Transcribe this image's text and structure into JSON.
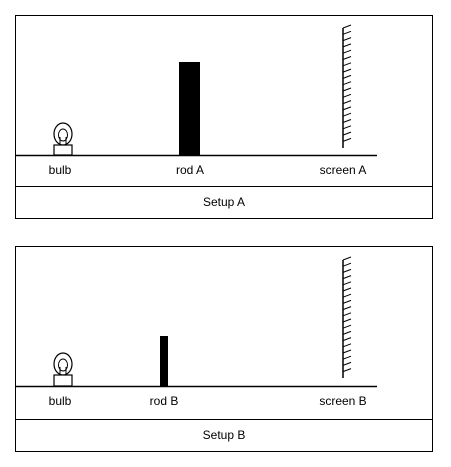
{
  "setups": [
    {
      "caption": "Setup A",
      "labels": {
        "bulb": "bulb",
        "rod": "rod A",
        "screen": "screen A"
      }
    },
    {
      "caption": "Setup B",
      "labels": {
        "bulb": "bulb",
        "rod": "rod B",
        "screen": "screen B"
      }
    }
  ]
}
